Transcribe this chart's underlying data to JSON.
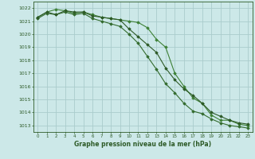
{
  "title": "Graphe pression niveau de la mer (hPa)",
  "background_color": "#cce8e8",
  "grid_color": "#aacccc",
  "line_color_dark": "#2d5a27",
  "line_color_mid": "#336b2e",
  "line_color_light": "#3d8035",
  "xlim": [
    -0.5,
    23.5
  ],
  "ylim": [
    1012.5,
    1022.5
  ],
  "yticks": [
    1013,
    1014,
    1015,
    1016,
    1017,
    1018,
    1019,
    1020,
    1021,
    1022
  ],
  "xticks": [
    0,
    1,
    2,
    3,
    4,
    5,
    6,
    7,
    8,
    9,
    10,
    11,
    12,
    13,
    14,
    15,
    16,
    17,
    18,
    19,
    20,
    21,
    22,
    23
  ],
  "series1_x": [
    0,
    1,
    2,
    3,
    4,
    5,
    6,
    7,
    8,
    9,
    10,
    11,
    12,
    13,
    14,
    15,
    16,
    17,
    18,
    19,
    20,
    21,
    22,
    23
  ],
  "series1_y": [
    1021.3,
    1021.7,
    1021.5,
    1021.8,
    1021.7,
    1021.7,
    1021.4,
    1021.3,
    1021.2,
    1021.1,
    1020.4,
    1019.8,
    1019.2,
    1018.6,
    1017.4,
    1016.5,
    1015.8,
    1015.3,
    1014.7,
    1014.0,
    1013.7,
    1013.4,
    1013.2,
    1013.1
  ],
  "series2_x": [
    0,
    1,
    2,
    3,
    4,
    5,
    6,
    7,
    8,
    9,
    10,
    11,
    12,
    13,
    14,
    15,
    16,
    17,
    18,
    19,
    20,
    21,
    22,
    23
  ],
  "series2_y": [
    1021.3,
    1021.7,
    1021.9,
    1021.8,
    1021.6,
    1021.7,
    1021.5,
    1021.3,
    1021.2,
    1021.1,
    1021.0,
    1020.9,
    1020.5,
    1019.6,
    1019.0,
    1017.0,
    1016.0,
    1015.1,
    1014.7,
    1013.8,
    1013.4,
    1013.4,
    1013.1,
    1013.0
  ],
  "series3_x": [
    0,
    1,
    2,
    3,
    4,
    5,
    6,
    7,
    8,
    9,
    10,
    11,
    12,
    13,
    14,
    15,
    16,
    17,
    18,
    19,
    20,
    21,
    22,
    23
  ],
  "series3_y": [
    1021.2,
    1021.6,
    1021.5,
    1021.7,
    1021.5,
    1021.6,
    1021.2,
    1021.0,
    1020.8,
    1020.6,
    1020.0,
    1019.3,
    1018.3,
    1017.3,
    1016.2,
    1015.5,
    1014.7,
    1014.1,
    1013.9,
    1013.5,
    1013.2,
    1013.0,
    1012.9,
    1012.8
  ],
  "ylabel_fontsize": 4.5,
  "xlabel_fontsize": 4.5,
  "title_fontsize": 5.5
}
